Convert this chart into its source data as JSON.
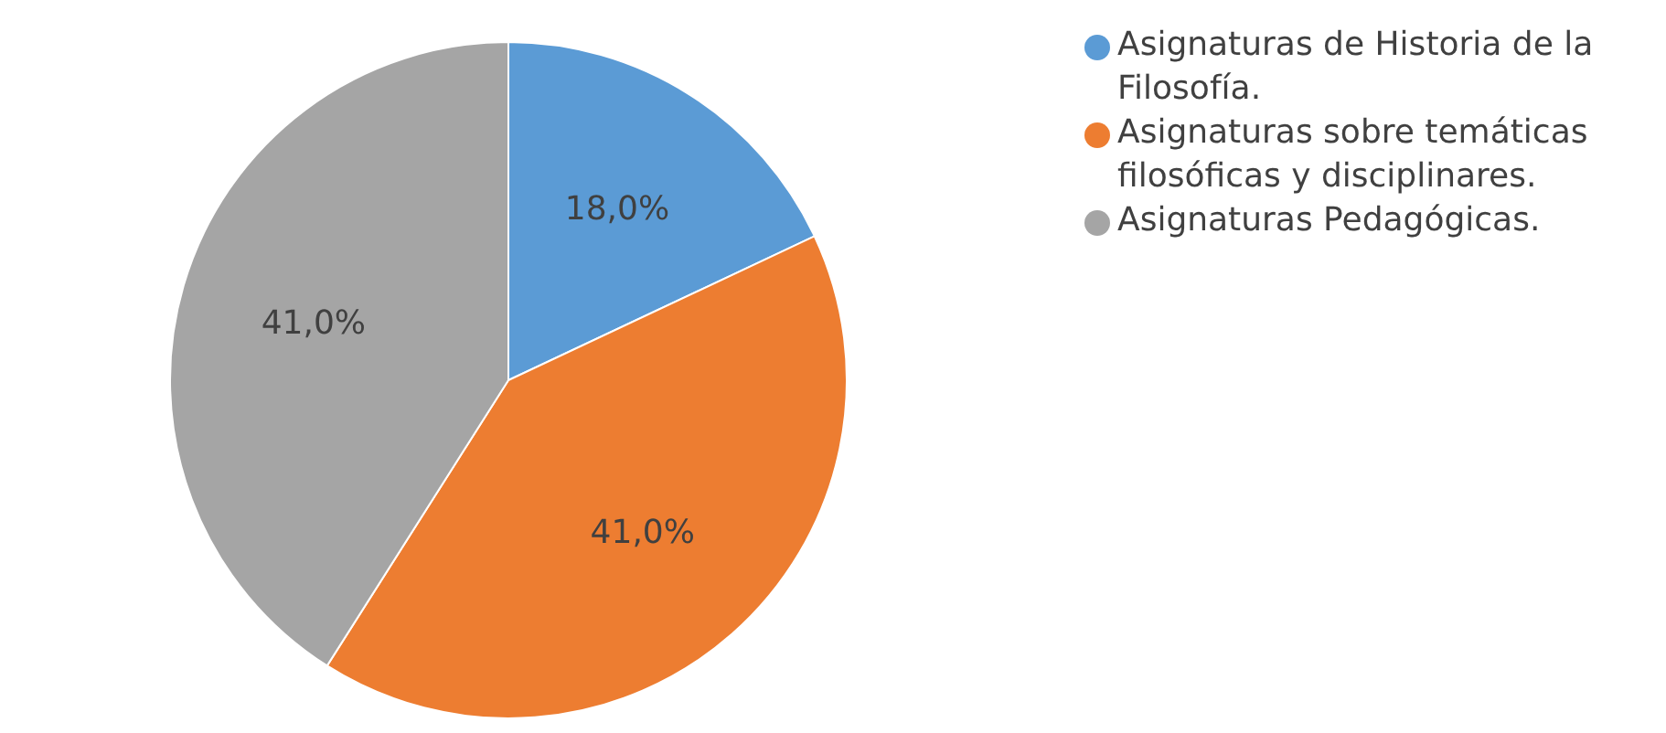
{
  "chart_data": {
    "type": "pie",
    "categories": [
      "Asignaturas de Historia de la Filosofía.",
      "Asignaturas sobre temáticas filosóficas y disciplinares.",
      "Asignaturas Pedagógicas."
    ],
    "values": [
      18,
      41,
      41
    ],
    "value_labels": [
      "18,0%",
      "41,0%",
      "41,0%"
    ],
    "colors": [
      "#5b9bd5",
      "#ed7d31",
      "#a5a5a5"
    ],
    "legend": "top right"
  }
}
